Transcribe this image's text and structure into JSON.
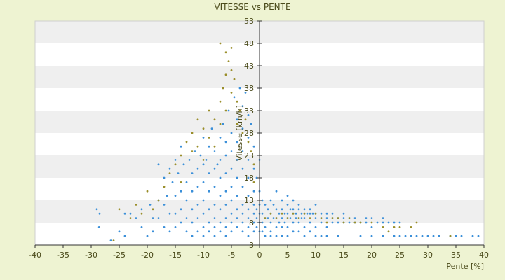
{
  "chart_data": {
    "type": "scatter",
    "title": "VITESSE vs PENTE",
    "xlabel": "Pente [%]",
    "ylabel": "Vitesse [km/h]",
    "xlim": [
      -40,
      40
    ],
    "ylim": [
      3,
      53
    ],
    "x_ticks": [
      -40,
      -35,
      -30,
      -25,
      -20,
      -15,
      -10,
      -5,
      0,
      5,
      10,
      15,
      20,
      25,
      30,
      35,
      40
    ],
    "y_ticks": [
      3,
      8,
      13,
      18,
      23,
      28,
      33,
      38,
      43,
      48,
      53
    ],
    "grid": "horizontal-bands",
    "legend": "none",
    "background_color": "#eef3d2",
    "band_colors": [
      "#ffffff",
      "#efefef"
    ],
    "series": [
      {
        "color": "#3a8fd9",
        "points": [
          [
            -29,
            11
          ],
          [
            -28.5,
            10
          ],
          [
            -28.6,
            7
          ],
          [
            -26.5,
            4
          ],
          [
            -25,
            6
          ],
          [
            -24,
            5
          ],
          [
            -24,
            10
          ],
          [
            -23,
            10
          ],
          [
            -22,
            9
          ],
          [
            -21,
            11
          ],
          [
            -21,
            7
          ],
          [
            -20,
            5
          ],
          [
            -19.5,
            12
          ],
          [
            -19,
            9
          ],
          [
            -19,
            6
          ],
          [
            -18,
            21
          ],
          [
            -18,
            13
          ],
          [
            -18,
            9
          ],
          [
            -17,
            18
          ],
          [
            -17,
            12
          ],
          [
            -17,
            7
          ],
          [
            -16.5,
            14
          ],
          [
            -16,
            20
          ],
          [
            -16,
            10
          ],
          [
            -16,
            6
          ],
          [
            -15.5,
            17
          ],
          [
            -15,
            22
          ],
          [
            -15,
            14
          ],
          [
            -15,
            10
          ],
          [
            -15,
            7
          ],
          [
            -14.5,
            19
          ],
          [
            -14,
            25
          ],
          [
            -14,
            15
          ],
          [
            -14,
            11
          ],
          [
            -14,
            8
          ],
          [
            -13.5,
            21
          ],
          [
            -13,
            17
          ],
          [
            -13,
            13
          ],
          [
            -13,
            9
          ],
          [
            -13,
            6
          ],
          [
            -12.5,
            22
          ],
          [
            -12,
            19
          ],
          [
            -12,
            15
          ],
          [
            -12,
            11
          ],
          [
            -12,
            8
          ],
          [
            -12,
            5
          ],
          [
            -11.5,
            24
          ],
          [
            -11,
            20
          ],
          [
            -11,
            16
          ],
          [
            -11,
            12
          ],
          [
            -11,
            9
          ],
          [
            -11,
            6
          ],
          [
            -10.5,
            23
          ],
          [
            -10,
            27
          ],
          [
            -10,
            21
          ],
          [
            -10,
            17
          ],
          [
            -10,
            13
          ],
          [
            -10,
            10
          ],
          [
            -10,
            7
          ],
          [
            -10,
            5
          ],
          [
            -9.5,
            22
          ],
          [
            -9,
            25
          ],
          [
            -9,
            19
          ],
          [
            -9,
            15
          ],
          [
            -9,
            11
          ],
          [
            -9,
            8
          ],
          [
            -9,
            6
          ],
          [
            -8.5,
            29
          ],
          [
            -8,
            24
          ],
          [
            -8,
            20
          ],
          [
            -8,
            16
          ],
          [
            -8,
            12
          ],
          [
            -8,
            9
          ],
          [
            -8,
            7
          ],
          [
            -8,
            5
          ],
          [
            -7.5,
            21
          ],
          [
            -7,
            27
          ],
          [
            -7,
            22
          ],
          [
            -7,
            18
          ],
          [
            -7,
            14
          ],
          [
            -7,
            11
          ],
          [
            -7,
            8
          ],
          [
            -7,
            6
          ],
          [
            -6.5,
            30
          ],
          [
            -6,
            26
          ],
          [
            -6,
            23
          ],
          [
            -6,
            19
          ],
          [
            -6,
            15
          ],
          [
            -6,
            12
          ],
          [
            -6,
            9
          ],
          [
            -6,
            7
          ],
          [
            -6,
            5
          ],
          [
            -5.5,
            33
          ],
          [
            -5,
            28
          ],
          [
            -5,
            24
          ],
          [
            -5,
            20
          ],
          [
            -5,
            16
          ],
          [
            -5,
            13
          ],
          [
            -5,
            10
          ],
          [
            -5,
            8
          ],
          [
            -5,
            6
          ],
          [
            -4.5,
            36
          ],
          [
            -4,
            31
          ],
          [
            -4,
            26
          ],
          [
            -4,
            22
          ],
          [
            -4,
            18
          ],
          [
            -4,
            14
          ],
          [
            -4,
            11
          ],
          [
            -4,
            9
          ],
          [
            -4,
            7
          ],
          [
            -3.5,
            38
          ],
          [
            -3,
            34
          ],
          [
            -3,
            29
          ],
          [
            -3,
            24
          ],
          [
            -3,
            20
          ],
          [
            -3,
            16
          ],
          [
            -3,
            12
          ],
          [
            -3,
            10
          ],
          [
            -3,
            8
          ],
          [
            -3,
            6
          ],
          [
            -2.5,
            37
          ],
          [
            -2,
            32
          ],
          [
            -2,
            27
          ],
          [
            -2,
            22
          ],
          [
            -2,
            18
          ],
          [
            -2,
            14
          ],
          [
            -2,
            11
          ],
          [
            -2,
            9
          ],
          [
            -2,
            7
          ],
          [
            -2,
            5
          ],
          [
            -1.5,
            30
          ],
          [
            -1,
            25
          ],
          [
            -1,
            20
          ],
          [
            -1,
            15
          ],
          [
            -1,
            12
          ],
          [
            -1,
            10
          ],
          [
            -1,
            8
          ],
          [
            -1,
            6
          ],
          [
            -0.5,
            18
          ],
          [
            -0.5,
            11
          ],
          [
            -0.5,
            9
          ],
          [
            -0.5,
            7
          ],
          [
            0,
            22
          ],
          [
            0,
            15
          ],
          [
            0,
            12
          ],
          [
            0,
            10
          ],
          [
            0,
            8
          ],
          [
            0,
            6
          ],
          [
            0.5,
            13
          ],
          [
            0.5,
            10
          ],
          [
            0.5,
            8
          ],
          [
            0.5,
            6
          ],
          [
            1,
            12
          ],
          [
            1,
            9
          ],
          [
            1,
            7
          ],
          [
            1,
            5
          ],
          [
            1.5,
            11
          ],
          [
            1.5,
            9
          ],
          [
            2,
            13
          ],
          [
            2,
            10
          ],
          [
            2,
            8
          ],
          [
            2,
            6
          ],
          [
            2,
            5
          ],
          [
            2.5,
            12
          ],
          [
            2.5,
            9
          ],
          [
            3,
            15
          ],
          [
            3,
            11
          ],
          [
            3,
            9
          ],
          [
            3,
            7
          ],
          [
            3,
            5
          ],
          [
            3.5,
            10
          ],
          [
            3.5,
            8
          ],
          [
            4,
            13
          ],
          [
            4,
            11
          ],
          [
            4,
            9
          ],
          [
            4,
            7
          ],
          [
            4,
            5
          ],
          [
            4.5,
            10
          ],
          [
            4.5,
            8
          ],
          [
            5,
            14
          ],
          [
            5,
            12
          ],
          [
            5,
            10
          ],
          [
            5,
            9
          ],
          [
            5,
            7
          ],
          [
            5,
            5
          ],
          [
            5.5,
            11
          ],
          [
            5.5,
            9
          ],
          [
            6,
            13
          ],
          [
            6,
            11
          ],
          [
            6,
            10
          ],
          [
            6,
            8
          ],
          [
            6,
            6
          ],
          [
            6.5,
            10
          ],
          [
            6.5,
            9
          ],
          [
            7,
            12
          ],
          [
            7,
            11
          ],
          [
            7,
            9
          ],
          [
            7,
            8
          ],
          [
            7,
            6
          ],
          [
            7.5,
            10
          ],
          [
            7.5,
            9
          ],
          [
            8,
            11
          ],
          [
            8,
            10
          ],
          [
            8,
            9
          ],
          [
            8,
            7
          ],
          [
            8,
            5
          ],
          [
            8.5,
            10
          ],
          [
            9,
            11
          ],
          [
            9,
            10
          ],
          [
            9,
            8
          ],
          [
            9,
            6
          ],
          [
            9.5,
            10
          ],
          [
            10,
            12
          ],
          [
            10,
            10
          ],
          [
            10,
            9
          ],
          [
            10,
            7
          ],
          [
            10,
            5
          ],
          [
            11,
            10
          ],
          [
            11,
            9
          ],
          [
            11,
            8
          ],
          [
            11,
            5
          ],
          [
            12,
            10
          ],
          [
            12,
            9
          ],
          [
            12,
            7
          ],
          [
            12,
            5
          ],
          [
            13,
            10
          ],
          [
            13,
            9
          ],
          [
            13,
            8
          ],
          [
            14,
            9
          ],
          [
            14,
            8
          ],
          [
            14,
            5
          ],
          [
            15,
            10
          ],
          [
            15,
            9
          ],
          [
            15,
            8
          ],
          [
            16,
            9
          ],
          [
            16,
            8
          ],
          [
            17,
            9
          ],
          [
            17,
            8
          ],
          [
            18,
            8
          ],
          [
            18,
            5
          ],
          [
            19,
            9
          ],
          [
            19,
            8
          ],
          [
            20,
            9
          ],
          [
            20,
            7
          ],
          [
            20,
            5
          ],
          [
            21,
            8
          ],
          [
            22,
            9
          ],
          [
            22,
            8
          ],
          [
            22,
            5
          ],
          [
            23,
            8
          ],
          [
            24,
            8
          ],
          [
            24,
            5
          ],
          [
            25,
            8
          ],
          [
            25,
            5
          ],
          [
            26,
            5
          ],
          [
            27,
            5
          ],
          [
            28,
            5
          ],
          [
            29,
            5
          ],
          [
            30,
            5
          ],
          [
            31,
            5
          ],
          [
            32,
            5
          ],
          [
            34,
            5
          ],
          [
            35,
            5
          ],
          [
            36,
            5
          ],
          [
            38,
            5
          ],
          [
            39,
            5
          ]
        ]
      },
      {
        "color": "#9a8e2a",
        "points": [
          [
            -26,
            4
          ],
          [
            -25,
            11
          ],
          [
            -23,
            9
          ],
          [
            -22,
            12
          ],
          [
            -21,
            10
          ],
          [
            -20,
            15
          ],
          [
            -19,
            11
          ],
          [
            -18,
            13
          ],
          [
            -17,
            16
          ],
          [
            -16,
            19
          ],
          [
            -15,
            21
          ],
          [
            -14,
            23
          ],
          [
            -14,
            17
          ],
          [
            -13,
            26
          ],
          [
            -12,
            24
          ],
          [
            -12,
            28
          ],
          [
            -11,
            31
          ],
          [
            -11,
            25
          ],
          [
            -10,
            29
          ],
          [
            -10,
            22
          ],
          [
            -9,
            33
          ],
          [
            -9,
            27
          ],
          [
            -8,
            31
          ],
          [
            -8,
            25
          ],
          [
            -7,
            35
          ],
          [
            -7,
            48
          ],
          [
            -7,
            30
          ],
          [
            -6.5,
            38
          ],
          [
            -6,
            46
          ],
          [
            -6,
            41
          ],
          [
            -6,
            33
          ],
          [
            -5.5,
            44
          ],
          [
            -5,
            47
          ],
          [
            -5,
            42
          ],
          [
            -5,
            37
          ],
          [
            -4.5,
            40
          ],
          [
            -4,
            35
          ],
          [
            -4,
            30
          ],
          [
            -3.5,
            33
          ],
          [
            -3,
            28
          ],
          [
            -2.5,
            31
          ],
          [
            -2,
            26
          ],
          [
            -1.5,
            24
          ],
          [
            -1,
            21
          ],
          [
            -1,
            17
          ],
          [
            1,
            9
          ],
          [
            2,
            10
          ],
          [
            3,
            9
          ],
          [
            4,
            10
          ],
          [
            5,
            9
          ],
          [
            6,
            10
          ],
          [
            7,
            9
          ],
          [
            8,
            10
          ],
          [
            9,
            9
          ],
          [
            10,
            10
          ],
          [
            11,
            9
          ],
          [
            12,
            8
          ],
          [
            13,
            9
          ],
          [
            14,
            9
          ],
          [
            15,
            8
          ],
          [
            16,
            9
          ],
          [
            17,
            8
          ],
          [
            18,
            8
          ],
          [
            20,
            8
          ],
          [
            22,
            7
          ],
          [
            23,
            6
          ],
          [
            24,
            7
          ],
          [
            25,
            7
          ],
          [
            27,
            7
          ],
          [
            28,
            8
          ],
          [
            34,
            5
          ]
        ]
      }
    ]
  }
}
